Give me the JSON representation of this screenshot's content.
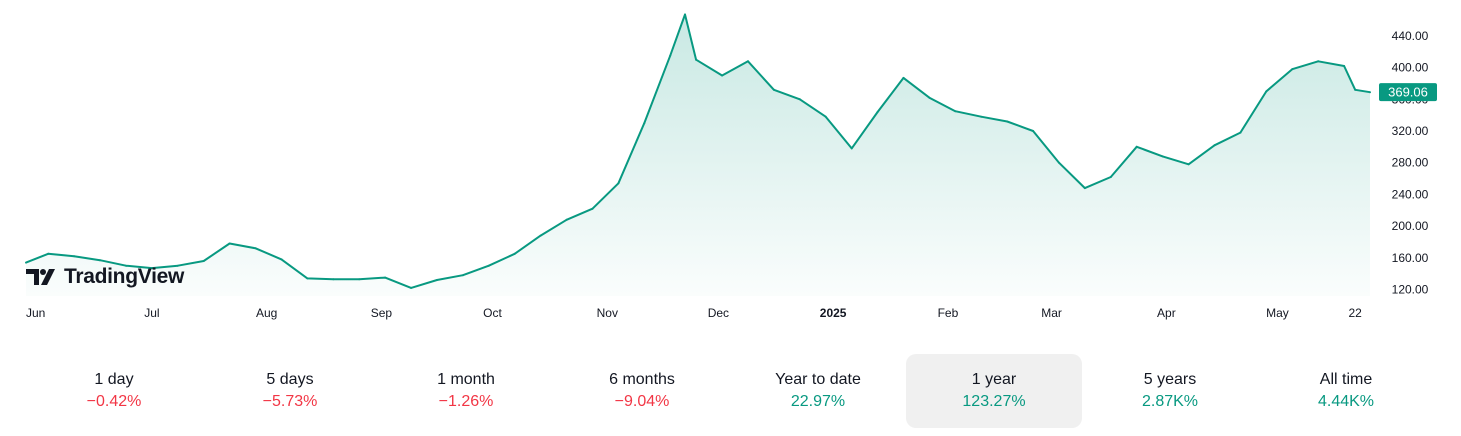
{
  "brand": {
    "name": "TradingView"
  },
  "colors": {
    "line": "#089981",
    "negative": "#f23645",
    "positive": "#089981",
    "price_tag_bg": "#089981"
  },
  "current_price_label": "369.06",
  "chart_data": {
    "type": "area",
    "title": "",
    "xlabel": "",
    "ylabel": "",
    "x_tick_labels": [
      "Jun",
      "Jul",
      "Aug",
      "Sep",
      "Oct",
      "Nov",
      "Dec",
      "2025",
      "Feb",
      "Mar",
      "Apr",
      "May",
      "22"
    ],
    "y_tick_labels": [
      "120.00",
      "160.00",
      "200.00",
      "240.00",
      "280.00",
      "320.00",
      "360.00",
      "400.00",
      "440.00"
    ],
    "ylim": [
      110,
      470
    ],
    "x": [
      "2024-05-28",
      "2024-06-03",
      "2024-06-10",
      "2024-06-17",
      "2024-06-24",
      "2024-07-01",
      "2024-07-08",
      "2024-07-15",
      "2024-07-22",
      "2024-07-29",
      "2024-08-05",
      "2024-08-12",
      "2024-08-19",
      "2024-08-26",
      "2024-09-02",
      "2024-09-09",
      "2024-09-16",
      "2024-09-23",
      "2024-09-30",
      "2024-10-07",
      "2024-10-14",
      "2024-10-21",
      "2024-10-28",
      "2024-11-04",
      "2024-11-11",
      "2024-11-18",
      "2024-11-22",
      "2024-11-25",
      "2024-12-02",
      "2024-12-09",
      "2024-12-16",
      "2024-12-23",
      "2024-12-30",
      "2025-01-06",
      "2025-01-13",
      "2025-01-20",
      "2025-01-27",
      "2025-02-03",
      "2025-02-10",
      "2025-02-17",
      "2025-02-24",
      "2025-03-03",
      "2025-03-10",
      "2025-03-17",
      "2025-03-24",
      "2025-03-31",
      "2025-04-07",
      "2025-04-14",
      "2025-04-21",
      "2025-04-28",
      "2025-05-05",
      "2025-05-12",
      "2025-05-19",
      "2025-05-22",
      "2025-05-26"
    ],
    "series": [
      {
        "values": [
          154,
          165,
          162,
          157,
          150,
          147,
          150,
          156,
          178,
          172,
          158,
          134,
          133,
          133,
          135,
          122,
          132,
          138,
          150,
          165,
          188,
          208,
          222,
          254,
          330,
          415,
          467,
          410,
          390,
          408,
          372,
          360,
          338,
          298,
          344,
          387,
          362,
          345,
          338,
          332,
          320,
          280,
          248,
          262,
          300,
          288,
          278,
          302,
          318,
          370,
          398,
          408,
          402,
          372,
          369
        ]
      }
    ],
    "last_value": 369.06
  },
  "performance": [
    {
      "label": "1 day",
      "value": "−0.42%",
      "sign": "neg",
      "active": false
    },
    {
      "label": "5 days",
      "value": "−5.73%",
      "sign": "neg",
      "active": false
    },
    {
      "label": "1 month",
      "value": "−1.26%",
      "sign": "neg",
      "active": false
    },
    {
      "label": "6 months",
      "value": "−9.04%",
      "sign": "neg",
      "active": false
    },
    {
      "label": "Year to date",
      "value": "22.97%",
      "sign": "pos",
      "active": false
    },
    {
      "label": "1 year",
      "value": "123.27%",
      "sign": "pos",
      "active": true
    },
    {
      "label": "5 years",
      "value": "2.87K%",
      "sign": "pos",
      "active": false
    },
    {
      "label": "All time",
      "value": "4.44K%",
      "sign": "pos",
      "active": false
    }
  ]
}
